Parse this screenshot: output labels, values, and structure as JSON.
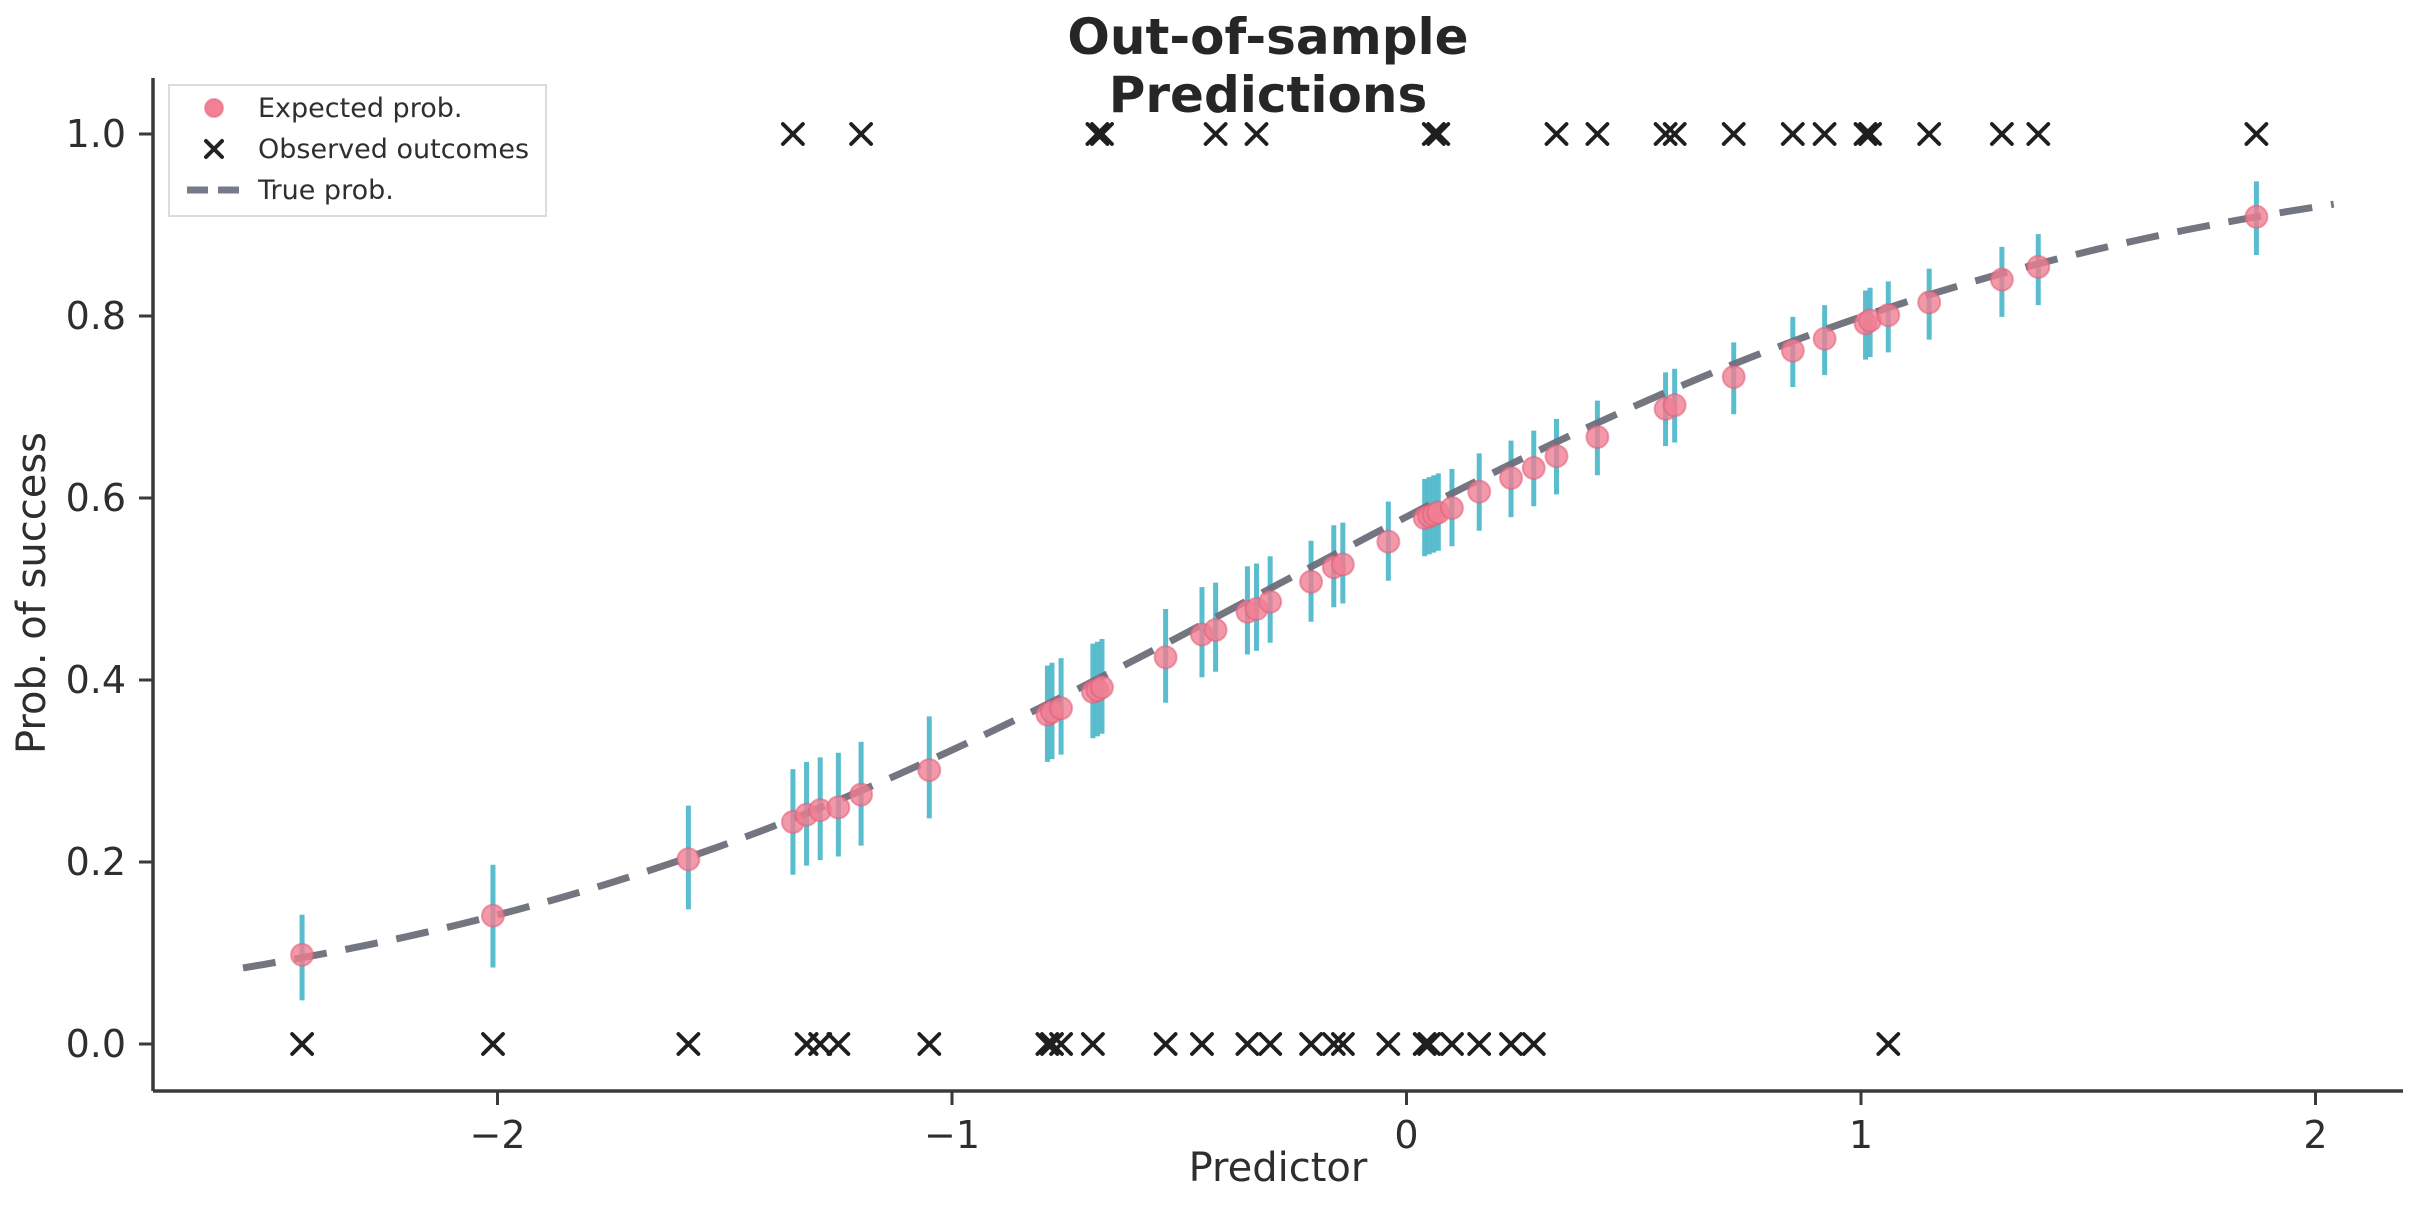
{
  "chart": {
    "title": "Out-of-sample Predictions",
    "xlabel": "Predictor",
    "ylabel": "Prob. of success"
  },
  "legend": {
    "items": [
      {
        "label": "Expected prob.",
        "marker": "pink-dot"
      },
      {
        "label": "Observed outcomes",
        "marker": "black-x"
      },
      {
        "label": "True prob.",
        "marker": "gray-dashed-line"
      }
    ]
  },
  "colors": {
    "expected_fill": "#f07e92",
    "expected_edge": "#e05c78",
    "errorbar": "#48b6c9",
    "observed": "#1f1f1f",
    "true_line": "#6b6f7a",
    "spine": "#3a3a3a",
    "tick_text": "#2e2e2e",
    "title_text": "#262626",
    "legend_border": "#dcdcdc"
  },
  "chart_data": {
    "type": "scatter",
    "title": "Out-of-sample Predictions",
    "xlabel": "Predictor",
    "ylabel": "Prob. of success",
    "xlim": [
      -2.76,
      2.19
    ],
    "ylim": [
      -0.05,
      1.06
    ],
    "grid": false,
    "legend_position": "upper left",
    "x_ticks": [
      {
        "v": -2,
        "label": "−2"
      },
      {
        "v": -1,
        "label": "−1"
      },
      {
        "v": 0,
        "label": "0"
      },
      {
        "v": 1,
        "label": "1"
      },
      {
        "v": 2,
        "label": "2"
      }
    ],
    "y_ticks": [
      {
        "v": 0.0,
        "label": "0.0"
      },
      {
        "v": 0.2,
        "label": "0.2"
      },
      {
        "v": 0.4,
        "label": "0.4"
      },
      {
        "v": 0.6,
        "label": "0.6"
      },
      {
        "v": 0.8,
        "label": "0.8"
      },
      {
        "v": 1.0,
        "label": "1.0"
      }
    ],
    "series": [
      {
        "name": "Expected prob.",
        "type": "scatter_with_errorbars",
        "note": "each point is [x, expected_prob, ci_low, ci_high]",
        "points": [
          [
            -2.43,
            0.098,
            0.048,
            0.142
          ],
          [
            -2.01,
            0.141,
            0.084,
            0.197
          ],
          [
            -1.58,
            0.203,
            0.148,
            0.262
          ],
          [
            -1.35,
            0.244,
            0.186,
            0.302
          ],
          [
            -1.32,
            0.252,
            0.196,
            0.31
          ],
          [
            -1.29,
            0.257,
            0.202,
            0.315
          ],
          [
            -1.25,
            0.26,
            0.206,
            0.32
          ],
          [
            -1.2,
            0.274,
            0.218,
            0.332
          ],
          [
            -1.05,
            0.301,
            0.248,
            0.36
          ],
          [
            -0.79,
            0.362,
            0.31,
            0.416
          ],
          [
            -0.78,
            0.365,
            0.313,
            0.419
          ],
          [
            -0.76,
            0.369,
            0.318,
            0.424
          ],
          [
            -0.69,
            0.387,
            0.336,
            0.44
          ],
          [
            -0.68,
            0.389,
            0.338,
            0.442
          ],
          [
            -0.67,
            0.392,
            0.341,
            0.445
          ],
          [
            -0.53,
            0.425,
            0.375,
            0.478
          ],
          [
            -0.45,
            0.45,
            0.403,
            0.502
          ],
          [
            -0.42,
            0.455,
            0.409,
            0.507
          ],
          [
            -0.35,
            0.475,
            0.428,
            0.525
          ],
          [
            -0.33,
            0.478,
            0.432,
            0.528
          ],
          [
            -0.3,
            0.486,
            0.441,
            0.536
          ],
          [
            -0.21,
            0.508,
            0.464,
            0.553
          ],
          [
            -0.16,
            0.524,
            0.48,
            0.57
          ],
          [
            -0.14,
            0.527,
            0.484,
            0.573
          ],
          [
            -0.04,
            0.552,
            0.509,
            0.596
          ],
          [
            0.04,
            0.578,
            0.536,
            0.621
          ],
          [
            0.05,
            0.58,
            0.538,
            0.623
          ],
          [
            0.06,
            0.582,
            0.54,
            0.625
          ],
          [
            0.07,
            0.584,
            0.542,
            0.627
          ],
          [
            0.1,
            0.589,
            0.547,
            0.632
          ],
          [
            0.16,
            0.607,
            0.564,
            0.649
          ],
          [
            0.23,
            0.622,
            0.579,
            0.663
          ],
          [
            0.28,
            0.633,
            0.591,
            0.674
          ],
          [
            0.33,
            0.646,
            0.604,
            0.687
          ],
          [
            0.42,
            0.667,
            0.625,
            0.707
          ],
          [
            0.57,
            0.698,
            0.657,
            0.738
          ],
          [
            0.59,
            0.702,
            0.661,
            0.742
          ],
          [
            0.72,
            0.733,
            0.692,
            0.771
          ],
          [
            0.85,
            0.762,
            0.722,
            0.799
          ],
          [
            0.92,
            0.775,
            0.735,
            0.812
          ],
          [
            1.01,
            0.792,
            0.752,
            0.828
          ],
          [
            1.02,
            0.795,
            0.755,
            0.831
          ],
          [
            1.06,
            0.801,
            0.76,
            0.838
          ],
          [
            1.15,
            0.815,
            0.774,
            0.852
          ],
          [
            1.31,
            0.84,
            0.799,
            0.876
          ],
          [
            1.39,
            0.854,
            0.812,
            0.89
          ],
          [
            1.87,
            0.909,
            0.867,
            0.948
          ]
        ]
      },
      {
        "name": "Observed outcomes",
        "type": "scatter",
        "marker": "x",
        "x": [
          -2.43,
          -2.01,
          -1.58,
          -1.32,
          -1.29,
          -1.25,
          -1.05,
          -0.79,
          -0.78,
          -0.76,
          -0.69,
          -0.53,
          -0.45,
          -0.35,
          -0.3,
          -0.21,
          -0.16,
          -0.14,
          -0.04,
          0.04,
          0.05,
          0.1,
          0.16,
          0.23,
          0.28,
          1.06,
          -1.35,
          -1.2,
          -0.68,
          -0.67,
          -0.42,
          -0.33,
          0.06,
          0.07,
          0.33,
          0.42,
          0.57,
          0.59,
          0.72,
          0.85,
          0.92,
          1.01,
          1.02,
          1.15,
          1.31,
          1.39,
          1.87
        ],
        "y": [
          0,
          0,
          0,
          0,
          0,
          0,
          0,
          0,
          0,
          0,
          0,
          0,
          0,
          0,
          0,
          0,
          0,
          0,
          0,
          0,
          0,
          0,
          0,
          0,
          0,
          0,
          1,
          1,
          1,
          1,
          1,
          1,
          1,
          1,
          1,
          1,
          1,
          1,
          1,
          1,
          1,
          1,
          1,
          1,
          1,
          1,
          1
        ]
      },
      {
        "name": "True prob.",
        "type": "line",
        "style": "dashed",
        "model": "logistic",
        "intercept": 0.32,
        "slope": 1.06,
        "x_range": [
          -2.56,
          2.06
        ]
      }
    ]
  }
}
